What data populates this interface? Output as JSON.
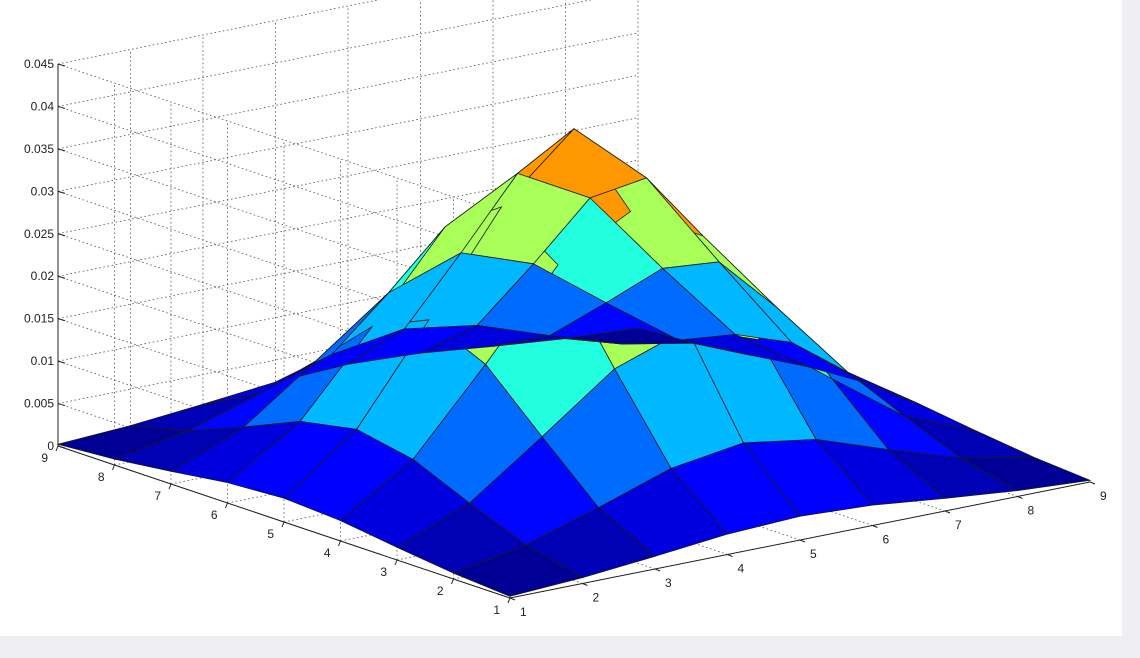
{
  "chart_data": {
    "type": "surface",
    "title": "",
    "xlabel": "",
    "ylabel": "",
    "zlabel": "",
    "grid": true,
    "colormap": "jet",
    "x": [
      1,
      2,
      3,
      4,
      5,
      6,
      7,
      8,
      9
    ],
    "y": [
      1,
      2,
      3,
      4,
      5,
      6,
      7,
      8,
      9
    ],
    "xlim": [
      1,
      9
    ],
    "ylim": [
      1,
      9
    ],
    "zlim": [
      0,
      0.045
    ],
    "x_ticks": [
      "1",
      "2",
      "3",
      "4",
      "5",
      "6",
      "7",
      "8",
      "9"
    ],
    "y_ticks": [
      "1",
      "2",
      "3",
      "4",
      "5",
      "6",
      "7",
      "8",
      "9"
    ],
    "z_ticks": [
      "0",
      "0.005",
      "0.01",
      "0.015",
      "0.02",
      "0.025",
      "0.03",
      "0.035",
      "0.04",
      "0.045"
    ],
    "z_values": [
      [
        0.0002,
        0.0007,
        0.0015,
        0.0024,
        0.0028,
        0.0024,
        0.0015,
        0.0007,
        0.0002
      ],
      [
        0.0007,
        0.0023,
        0.005,
        0.0079,
        0.0092,
        0.0079,
        0.005,
        0.0023,
        0.0007
      ],
      [
        0.0015,
        0.005,
        0.0111,
        0.0174,
        0.0204,
        0.0174,
        0.0111,
        0.005,
        0.0015
      ],
      [
        0.0024,
        0.0079,
        0.0174,
        0.0274,
        0.032,
        0.0274,
        0.0174,
        0.0079,
        0.0024
      ],
      [
        0.0028,
        0.0092,
        0.0204,
        0.032,
        0.0395,
        0.032,
        0.0204,
        0.0092,
        0.0028
      ],
      [
        0.0024,
        0.0079,
        0.0174,
        0.0274,
        0.032,
        0.0274,
        0.0174,
        0.0079,
        0.0024
      ],
      [
        0.0015,
        0.005,
        0.0111,
        0.0174,
        0.0204,
        0.0174,
        0.0111,
        0.005,
        0.0015
      ],
      [
        0.0007,
        0.0023,
        0.005,
        0.0079,
        0.0092,
        0.0079,
        0.005,
        0.0023,
        0.0007
      ],
      [
        0.0002,
        0.0007,
        0.0015,
        0.0024,
        0.0028,
        0.0024,
        0.0015,
        0.0007,
        0.0002
      ]
    ]
  }
}
